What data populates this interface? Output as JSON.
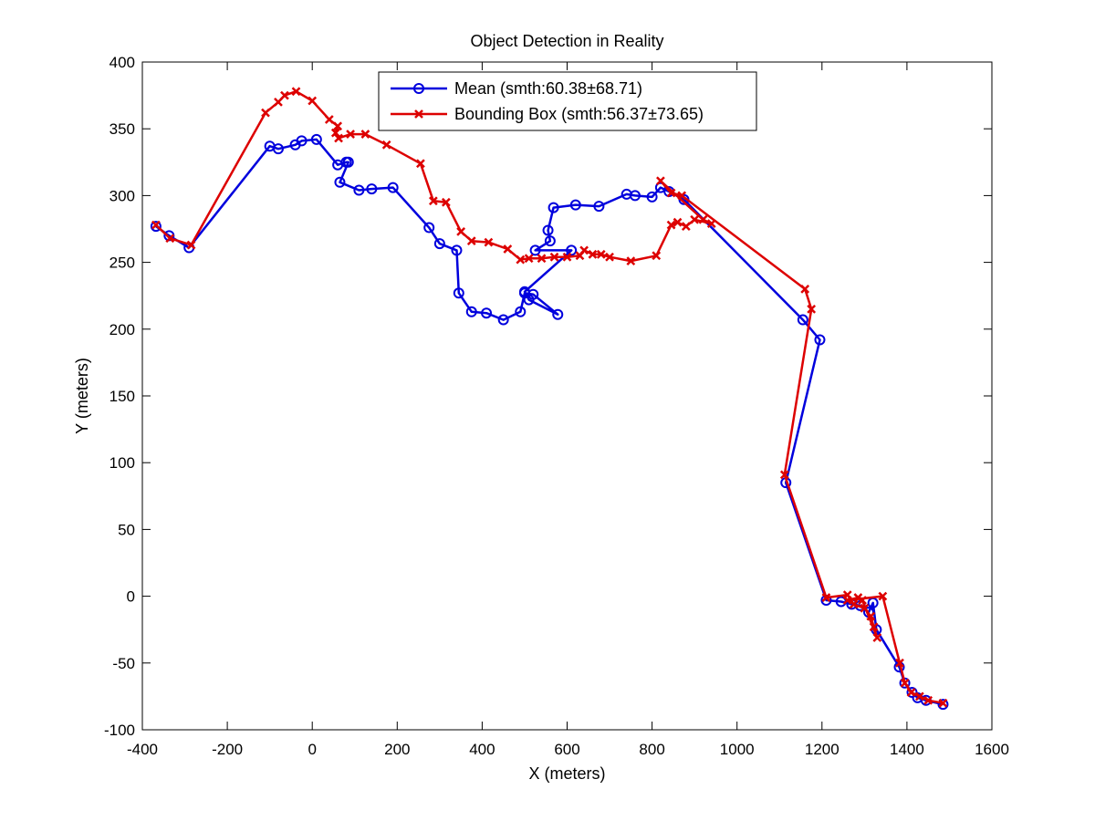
{
  "chart_data": {
    "type": "line",
    "title": "Object Detection in Reality",
    "xlabel": "X (meters)",
    "ylabel": "Y (meters)",
    "xlim": [
      -400,
      1600
    ],
    "ylim": [
      -100,
      400
    ],
    "xticks": [
      "-400",
      "-200",
      "0",
      "200",
      "400",
      "600",
      "800",
      "1000",
      "1200",
      "1400",
      "1600"
    ],
    "yticks": [
      "400",
      "350",
      "300",
      "250",
      "200",
      "150",
      "100",
      "50",
      "0",
      "-50",
      "-100"
    ],
    "grid": false,
    "legend_position": "top-center",
    "series": [
      {
        "name": "Mean (smth:60.38±68.71)",
        "color": "#0000dd",
        "marker": "circle",
        "points": [
          [
            -368,
            277
          ],
          [
            -337,
            270
          ],
          [
            -290,
            261
          ],
          [
            -100,
            337
          ],
          [
            -80,
            335
          ],
          [
            -40,
            338
          ],
          [
            -25,
            341
          ],
          [
            10,
            342
          ],
          [
            60,
            323
          ],
          [
            80,
            325
          ],
          [
            85,
            325
          ],
          [
            65,
            310
          ],
          [
            110,
            304
          ],
          [
            140,
            305
          ],
          [
            190,
            306
          ],
          [
            275,
            276
          ],
          [
            300,
            264
          ],
          [
            340,
            259
          ],
          [
            345,
            227
          ],
          [
            375,
            213
          ],
          [
            410,
            212
          ],
          [
            450,
            207
          ],
          [
            490,
            213
          ],
          [
            500,
            227
          ],
          [
            520,
            226
          ],
          [
            578,
            211
          ],
          [
            510,
            222
          ],
          [
            500,
            228
          ],
          [
            610,
            259
          ],
          [
            525,
            259
          ],
          [
            560,
            266
          ],
          [
            555,
            274
          ],
          [
            568,
            291
          ],
          [
            620,
            293
          ],
          [
            675,
            292
          ],
          [
            740,
            301
          ],
          [
            760,
            300
          ],
          [
            800,
            299
          ],
          [
            820,
            306
          ],
          [
            840,
            303
          ],
          [
            875,
            297
          ],
          [
            1155,
            207
          ],
          [
            1195,
            192
          ],
          [
            1115,
            85
          ],
          [
            1210,
            -3
          ],
          [
            1245,
            -4
          ],
          [
            1270,
            -6
          ],
          [
            1290,
            -7
          ],
          [
            1310,
            -12
          ],
          [
            1320,
            -5
          ],
          [
            1328,
            -25
          ],
          [
            1382,
            -53
          ],
          [
            1395,
            -65
          ],
          [
            1412,
            -72
          ],
          [
            1425,
            -76
          ],
          [
            1445,
            -78
          ],
          [
            1485,
            -81
          ]
        ]
      },
      {
        "name": "Bounding Box (smth:56.37±73.65)",
        "color": "#dd0000",
        "marker": "x",
        "points": [
          [
            -368,
            278
          ],
          [
            -335,
            268
          ],
          [
            -285,
            263
          ],
          [
            -110,
            362
          ],
          [
            -80,
            370
          ],
          [
            -65,
            375
          ],
          [
            -38,
            378
          ],
          [
            0,
            371
          ],
          [
            40,
            357
          ],
          [
            60,
            352
          ],
          [
            55,
            347
          ],
          [
            62,
            343
          ],
          [
            90,
            346
          ],
          [
            125,
            346
          ],
          [
            175,
            338
          ],
          [
            255,
            324
          ],
          [
            285,
            296
          ],
          [
            315,
            295
          ],
          [
            350,
            273
          ],
          [
            375,
            266
          ],
          [
            415,
            265
          ],
          [
            460,
            260
          ],
          [
            490,
            252
          ],
          [
            510,
            253
          ],
          [
            540,
            253
          ],
          [
            570,
            254
          ],
          [
            600,
            254
          ],
          [
            630,
            255
          ],
          [
            640,
            259
          ],
          [
            660,
            256
          ],
          [
            680,
            256
          ],
          [
            700,
            254
          ],
          [
            750,
            251
          ],
          [
            810,
            255
          ],
          [
            845,
            278
          ],
          [
            860,
            280
          ],
          [
            880,
            277
          ],
          [
            900,
            282
          ],
          [
            940,
            279
          ],
          [
            920,
            282
          ],
          [
            820,
            311
          ],
          [
            845,
            302
          ],
          [
            870,
            300
          ],
          [
            1160,
            230
          ],
          [
            1175,
            215
          ],
          [
            1112,
            91
          ],
          [
            1210,
            -1
          ],
          [
            1260,
            1
          ],
          [
            1275,
            -6
          ],
          [
            1300,
            -9
          ],
          [
            1315,
            -15
          ],
          [
            1322,
            -23
          ],
          [
            1330,
            -31
          ],
          [
            1295,
            -3
          ],
          [
            1285,
            -1
          ],
          [
            1260,
            -3
          ],
          [
            1343,
            0
          ],
          [
            1383,
            -50
          ],
          [
            1395,
            -65
          ],
          [
            1410,
            -72
          ],
          [
            1430,
            -75
          ],
          [
            1450,
            -78
          ],
          [
            1485,
            -80
          ]
        ]
      }
    ]
  }
}
